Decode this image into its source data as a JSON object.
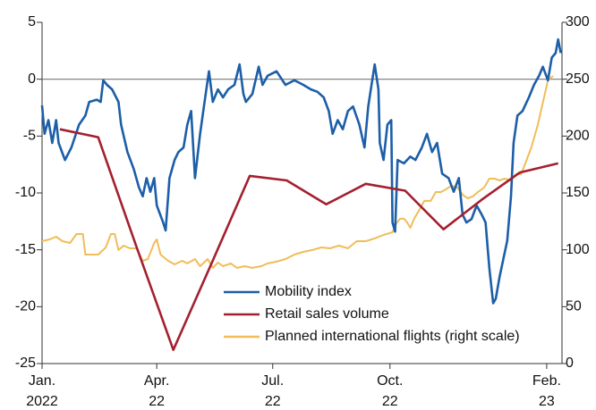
{
  "chart_data": {
    "type": "line",
    "xlim": [
      0,
      408
    ],
    "xticks": [
      {
        "value": 0,
        "label": "Jan. 2022"
      },
      {
        "value": 90,
        "label": "Apr. 22"
      },
      {
        "value": 181,
        "label": "Jul. 22"
      },
      {
        "value": 273,
        "label": "Oct. 22"
      },
      {
        "value": 396,
        "label": "Feb. 23"
      }
    ],
    "ylim": [
      -25,
      5
    ],
    "yticks": [
      5,
      0,
      -5,
      -10,
      -15,
      -20,
      -25
    ],
    "y2lim": [
      0,
      300
    ],
    "y2ticks": [
      300,
      250,
      200,
      150,
      100,
      50,
      0
    ],
    "hline": 0,
    "legend": "lower center",
    "series": [
      {
        "name": "Mobility index",
        "color": "#1c5ea8",
        "x": [
          0,
          2,
          5,
          8,
          11,
          13,
          18,
          23,
          29,
          34,
          37,
          43,
          46,
          48,
          51,
          55,
          60,
          62,
          67,
          72,
          76,
          79,
          82,
          85,
          88,
          90,
          95,
          97,
          100,
          104,
          107,
          111,
          114,
          117,
          120,
          124,
          128,
          131,
          134,
          138,
          142,
          146,
          151,
          155,
          158,
          160,
          165,
          170,
          173,
          177,
          184,
          191,
          198,
          205,
          211,
          216,
          221,
          225,
          228,
          232,
          236,
          240,
          244,
          249,
          253,
          256,
          258,
          261,
          264,
          265,
          268,
          271,
          274,
          275,
          277,
          279,
          284,
          289,
          293,
          298,
          302,
          306,
          310,
          314,
          319,
          323,
          327,
          330,
          333,
          337,
          341,
          345,
          348,
          351,
          354,
          356,
          359,
          362,
          365,
          368,
          370,
          373,
          377,
          382,
          386,
          390,
          393,
          397,
          400,
          403,
          405,
          407
        ],
        "values": [
          -2.3,
          -4.8,
          -3.6,
          -5.6,
          -3.6,
          -5.6,
          -7.1,
          -6.0,
          -4.0,
          -3.2,
          -2.0,
          -1.8,
          -2.0,
          -0.1,
          -0.5,
          -0.9,
          -2.0,
          -4.0,
          -6.4,
          -7.9,
          -9.5,
          -10.3,
          -8.7,
          -9.9,
          -8.7,
          -11.1,
          -12.6,
          -13.3,
          -8.7,
          -7.1,
          -6.4,
          -6.0,
          -4.0,
          -2.8,
          -8.7,
          -4.8,
          -1.6,
          0.7,
          -2.0,
          -0.9,
          -1.6,
          -0.9,
          -0.5,
          1.3,
          -1.3,
          -2.0,
          -1.3,
          1.1,
          -0.5,
          0.3,
          0.7,
          -0.5,
          -0.1,
          -0.5,
          -0.9,
          -1.1,
          -1.6,
          -2.8,
          -4.8,
          -3.6,
          -4.4,
          -2.8,
          -2.4,
          -4.0,
          -6.0,
          -2.4,
          -0.9,
          1.3,
          -0.9,
          -5.6,
          -7.1,
          -4.0,
          -3.6,
          -12.6,
          -13.4,
          -7.1,
          -7.4,
          -6.8,
          -7.1,
          -6.0,
          -4.8,
          -6.4,
          -5.6,
          -8.3,
          -8.7,
          -9.9,
          -8.7,
          -11.9,
          -12.6,
          -12.3,
          -11.1,
          -11.9,
          -12.6,
          -16.6,
          -19.7,
          -19.3,
          -17.4,
          -15.8,
          -14.2,
          -10.3,
          -5.6,
          -3.2,
          -2.8,
          -1.6,
          -0.5,
          0.3,
          1.1,
          -0.1,
          1.9,
          2.3,
          3.5,
          2.3
        ]
      },
      {
        "name": "Retail sales volume",
        "color": "#a3202f",
        "x": [
          14,
          44,
          73,
          103,
          133,
          163,
          192,
          223,
          254,
          285,
          315,
          345,
          375,
          405
        ],
        "values": [
          -4.4,
          -5.1,
          -14.4,
          -23.8,
          -16.2,
          -8.5,
          -8.9,
          -11.0,
          -9.2,
          -9.8,
          -13.2,
          -10.6,
          -8.2,
          -7.4
        ]
      },
      {
        "name": "Planned international flights (right scale)",
        "color": "#f0bd58",
        "axis": "y2",
        "x": [
          0,
          6,
          11,
          16,
          22,
          27,
          32,
          34,
          39,
          44,
          50,
          54,
          57,
          60,
          64,
          69,
          74,
          79,
          83,
          88,
          90,
          93,
          99,
          104,
          110,
          114,
          120,
          124,
          130,
          134,
          138,
          142,
          148,
          153,
          159,
          165,
          172,
          177,
          184,
          191,
          198,
          205,
          212,
          219,
          226,
          233,
          240,
          247,
          254,
          261,
          268,
          275,
          278,
          281,
          284,
          286,
          289,
          292,
          296,
          300,
          305,
          309,
          313,
          317,
          321,
          326,
          330,
          334,
          338,
          342,
          347,
          351,
          355,
          359,
          363,
          368,
          372,
          376,
          380,
          384,
          389,
          393,
          397,
          401
        ],
        "values": [
          107.6,
          109.2,
          111.5,
          107.6,
          106.0,
          113.9,
          113.9,
          95.8,
          95.8,
          95.8,
          102.1,
          113.9,
          113.9,
          99.8,
          103.7,
          101.3,
          101.3,
          90.3,
          91.9,
          106.0,
          109.2,
          95.8,
          90.3,
          87.2,
          90.3,
          88.0,
          91.9,
          85.6,
          91.9,
          84.1,
          88.8,
          85.6,
          88.0,
          84.1,
          85.6,
          84.1,
          85.6,
          88.0,
          89.6,
          91.9,
          95.8,
          98.2,
          99.8,
          102.1,
          101.3,
          103.7,
          101.3,
          107.6,
          107.6,
          110.0,
          113.1,
          115.5,
          123.3,
          127.3,
          127.3,
          124.9,
          119.4,
          127.3,
          135.1,
          143.0,
          143.0,
          150.8,
          150.8,
          153.2,
          156.3,
          154.8,
          148.5,
          145.3,
          146.9,
          150.8,
          154.8,
          162.6,
          162.6,
          161.0,
          162.6,
          161.0,
          166.5,
          166.5,
          178.3,
          190.1,
          209.7,
          229.4,
          249.0,
          252.9
        ]
      }
    ]
  }
}
